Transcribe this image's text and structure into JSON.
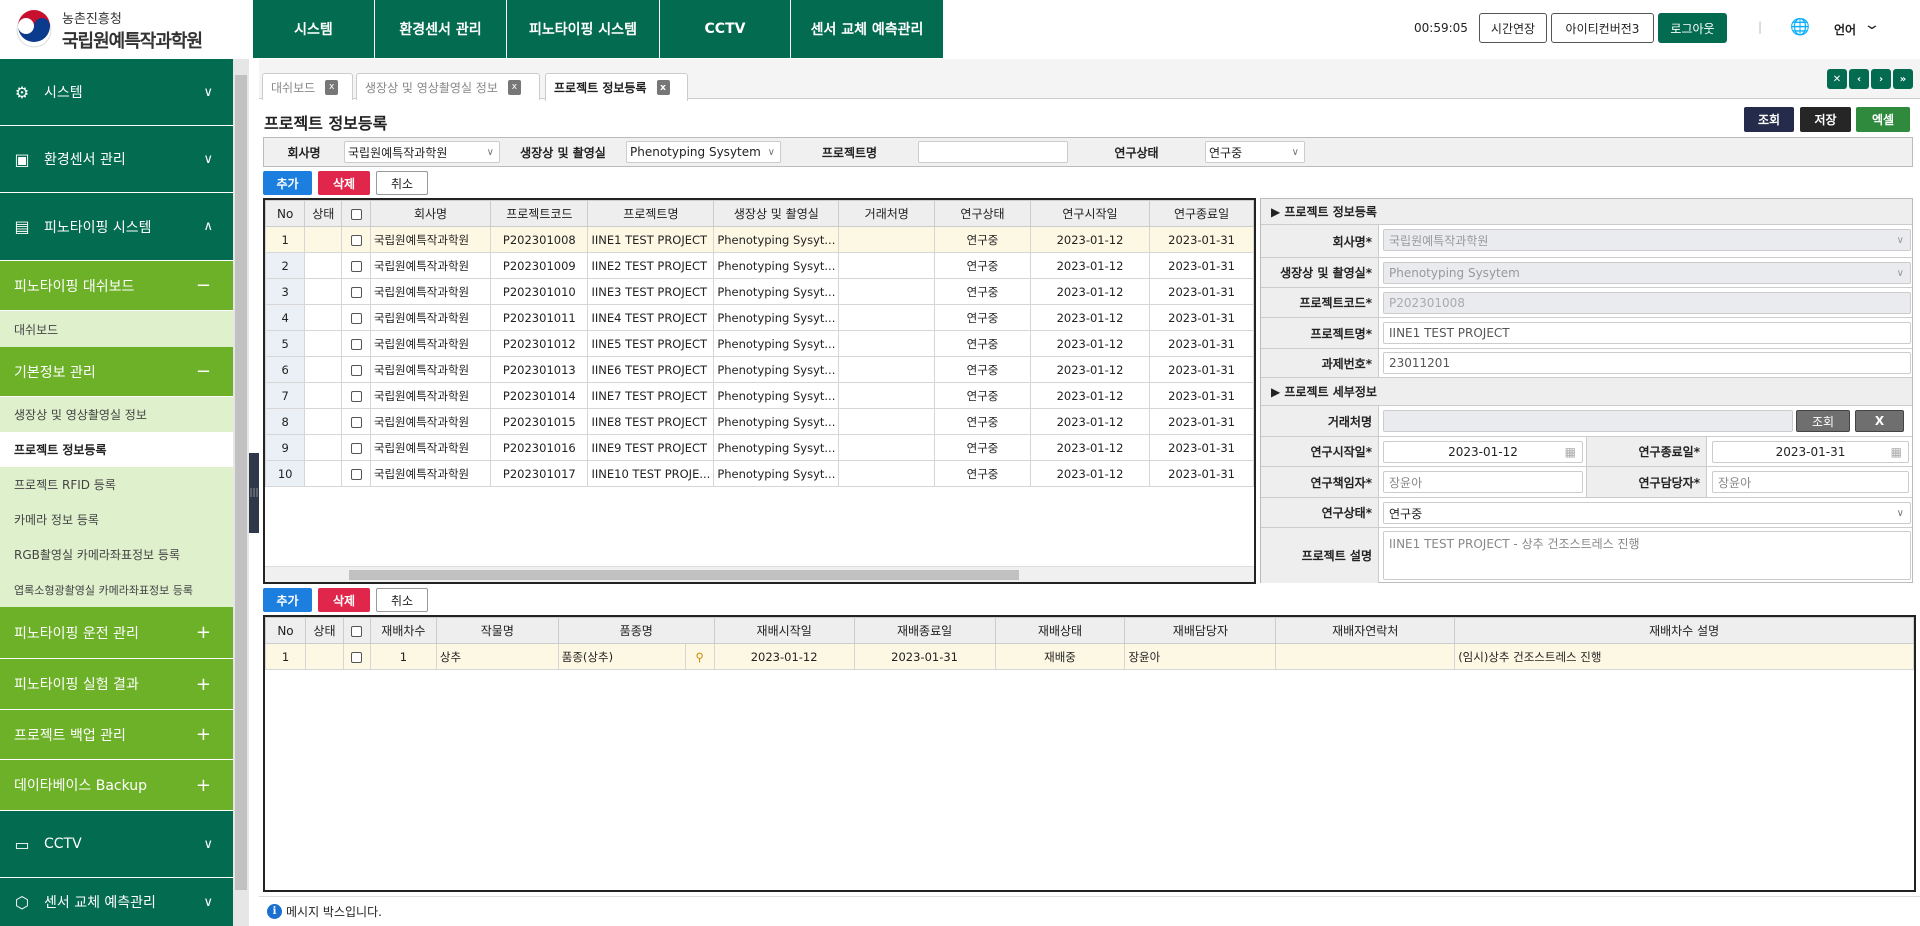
{
  "logo": {
    "line1": "농촌진흥청",
    "line2": "국립원예특작과학원"
  },
  "topmenu": [
    "시스템",
    "환경센서 관리",
    "피노타이핑 시스템",
    "CCTV",
    "센서 교체 예측관리"
  ],
  "header": {
    "timer": "00:59:05",
    "extend": "시간연장",
    "user": "아이티컨버전3",
    "logout": "로그아웃",
    "lang": "언어"
  },
  "sidebar": {
    "s1": [
      {
        "label": "시스템",
        "icon": "gear-icon"
      },
      {
        "label": "환경센서 관리",
        "icon": "sensor-icon"
      },
      {
        "label": "피노타이핑 시스템",
        "icon": "window-icon"
      }
    ],
    "dash_group": "피노타이핑 대쉬보드",
    "dash_item": "대쉬보드",
    "basic_group": "기본정보 관리",
    "basic_items": [
      "생장상 및 영상촬영실 정보",
      "프로젝트 정보등록",
      "프로젝트 RFID 등록",
      "카메라 정보 등록",
      "RGB촬영실 카메라좌표정보 등록",
      "엽록소형광촬영실 카메라좌표정보 등록"
    ],
    "groups": [
      "피노타이핑 운전 관리",
      "피노타이핑 실험 결과",
      "프로젝트 백업 관리",
      "데이타베이스 Backup"
    ],
    "cctv": "CCTV",
    "sensor": "센서 교체 예측관리"
  },
  "tabs": [
    "대쉬보드",
    "생장상 및 영상촬영실 정보",
    "프로젝트 정보등록"
  ],
  "page": {
    "title": "프로젝트 정보등록",
    "search": "조회",
    "save": "저장",
    "excel": "엑셀"
  },
  "filter": {
    "company_label": "회사명",
    "company": "국립원예특작과학원",
    "room_label": "생장상 및 촬영실",
    "room": "Phenotyping Sysytem",
    "pname_label": "프로젝트명",
    "pname": "",
    "status_label": "연구상태",
    "status": "연구중"
  },
  "buttons": {
    "add": "추가",
    "del": "삭제",
    "cancel": "취소"
  },
  "grid1": {
    "headers": [
      "No",
      "상태",
      "",
      "회사명",
      "프로젝트코드",
      "프로젝트명",
      "생장상 및 촬영실",
      "거래처명",
      "연구상태",
      "연구시작일",
      "연구종료일"
    ],
    "rows": [
      [
        "1",
        "",
        "",
        "국립원예특작과학원",
        "P202301008",
        "IINE1 TEST PROJECT",
        "Phenotyping Sysyt...",
        "",
        "연구중",
        "2023-01-12",
        "2023-01-31"
      ],
      [
        "2",
        "",
        "",
        "국립원예특작과학원",
        "P202301009",
        "IINE2 TEST PROJECT",
        "Phenotyping Sysyt...",
        "",
        "연구중",
        "2023-01-12",
        "2023-01-31"
      ],
      [
        "3",
        "",
        "",
        "국립원예특작과학원",
        "P202301010",
        "IINE3 TEST PROJECT",
        "Phenotyping Sysyt...",
        "",
        "연구중",
        "2023-01-12",
        "2023-01-31"
      ],
      [
        "4",
        "",
        "",
        "국립원예특작과학원",
        "P202301011",
        "IINE4 TEST PROJECT",
        "Phenotyping Sysyt...",
        "",
        "연구중",
        "2023-01-12",
        "2023-01-31"
      ],
      [
        "5",
        "",
        "",
        "국립원예특작과학원",
        "P202301012",
        "IINE5 TEST PROJECT",
        "Phenotyping Sysyt...",
        "",
        "연구중",
        "2023-01-12",
        "2023-01-31"
      ],
      [
        "6",
        "",
        "",
        "국립원예특작과학원",
        "P202301013",
        "IINE6 TEST PROJECT",
        "Phenotyping Sysyt...",
        "",
        "연구중",
        "2023-01-12",
        "2023-01-31"
      ],
      [
        "7",
        "",
        "",
        "국립원예특작과학원",
        "P202301014",
        "IINE7 TEST PROJECT",
        "Phenotyping Sysyt...",
        "",
        "연구중",
        "2023-01-12",
        "2023-01-31"
      ],
      [
        "8",
        "",
        "",
        "국립원예특작과학원",
        "P202301015",
        "IINE8 TEST PROJECT",
        "Phenotyping Sysyt...",
        "",
        "연구중",
        "2023-01-12",
        "2023-01-31"
      ],
      [
        "9",
        "",
        "",
        "국립원예특작과학원",
        "P202301016",
        "IINE9 TEST PROJECT",
        "Phenotyping Sysyt...",
        "",
        "연구중",
        "2023-01-12",
        "2023-01-31"
      ],
      [
        "10",
        "",
        "",
        "국립원예특작과학원",
        "P202301017",
        "IINE10 TEST PROJE...",
        "Phenotyping Sysyt...",
        "",
        "연구중",
        "2023-01-12",
        "2023-01-31"
      ]
    ]
  },
  "form": {
    "sec1": "프로젝트 정보등록",
    "sec2": "프로젝트 세부정보",
    "company_label": "회사명*",
    "company": "국립원예특작과학원",
    "room_label": "생장상 및 촬영실*",
    "room": "Phenotyping Sysytem",
    "code_label": "프로젝트코드*",
    "code": "P202301008",
    "name_label": "프로젝트명*",
    "name": "IINE1 TEST PROJECT",
    "task_label": "과제번호*",
    "task": "23011201",
    "client_label": "거래처명",
    "client": "",
    "client_search": "조회",
    "client_clear": "X",
    "start_label": "연구시작일*",
    "start": "2023-01-12",
    "end_label": "연구종료일*",
    "end": "2023-01-31",
    "lead_label": "연구책임자*",
    "lead": "장윤아",
    "mgr_label": "연구담당자*",
    "mgr": "장윤아",
    "status_label": "연구상태*",
    "status": "연구중",
    "desc_label": "프로젝트 설명",
    "desc": "IINE1 TEST PROJECT - 상추 건조스트레스 진행"
  },
  "grid2": {
    "headers": [
      "No",
      "상태",
      "",
      "재배차수",
      "작물명",
      "품종명",
      "",
      "재배시작일",
      "재배종료일",
      "재배상태",
      "재배담당자",
      "재배자연락처",
      "재배차수 설명"
    ],
    "rows": [
      [
        "1",
        "",
        "",
        "1",
        "상추",
        "품종(상추)",
        "",
        "2023-01-12",
        "2023-01-31",
        "재배중",
        "장윤아",
        "",
        "(임시)상추 건조스트레스 진행"
      ]
    ]
  },
  "message": "메시지 박스입니다.",
  "colors": {
    "dark_green": "#036b4f",
    "light_green": "#6db128",
    "pale_green": "#dff0cd",
    "add": "#1c7fe0",
    "delete": "#e0264a",
    "selected_row": "#fdf8e4"
  }
}
